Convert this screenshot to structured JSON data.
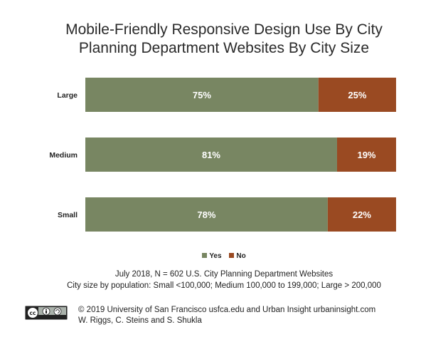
{
  "chart_data": {
    "type": "bar",
    "orientation": "horizontal",
    "stacked": true,
    "title_lines": [
      "Mobile-Friendly Responsive Design Use By City",
      "Planning Department Websites By City Size"
    ],
    "categories": [
      "Large",
      "Medium",
      "Small"
    ],
    "series": [
      {
        "name": "Yes",
        "color": "#788662",
        "values": [
          75,
          81,
          78
        ],
        "labels": [
          "75%",
          "81%",
          "78%"
        ]
      },
      {
        "name": "No",
        "color": "#9a4a22",
        "values": [
          25,
          19,
          22
        ],
        "labels": [
          "25%",
          "19%",
          "22%"
        ]
      }
    ],
    "xlim": [
      0,
      100
    ],
    "grid": false,
    "legend_position": "bottom"
  },
  "notes": [
    "July 2018, N = 602 U.S. City Planning Department Websites",
    "City size by population:  Small <100,000; Medium 100,000 to 199,000; Large > 200,000"
  ],
  "credit": [
    "© 2019 University of San Francisco usfca.edu and Urban Insight urbaninsight.com",
    "W. Riggs, C. Steins and S. Shukla"
  ],
  "license_icon": "creative-commons-by-sa-badge"
}
